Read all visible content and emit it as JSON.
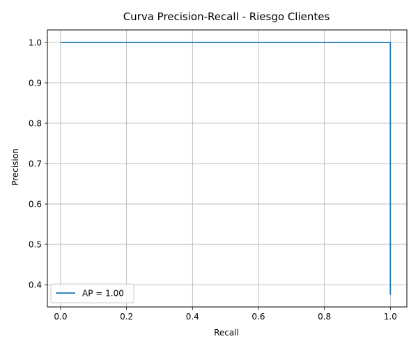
{
  "chart_data": {
    "type": "line",
    "title": "Curva Precision-Recall - Riesgo Clientes",
    "xlabel": "Recall",
    "ylabel": "Precision",
    "xlim": [
      -0.04,
      1.05
    ],
    "ylim": [
      0.345,
      1.031
    ],
    "xticks": [
      0.0,
      0.2,
      0.4,
      0.6,
      0.8,
      1.0
    ],
    "xtick_labels": [
      "0.0",
      "0.2",
      "0.4",
      "0.6",
      "0.8",
      "1.0"
    ],
    "yticks": [
      0.4,
      0.5,
      0.6,
      0.7,
      0.8,
      0.9,
      1.0
    ],
    "ytick_labels": [
      "0.4",
      "0.5",
      "0.6",
      "0.7",
      "0.8",
      "0.9",
      "1.0"
    ],
    "grid": true,
    "legend_position": "lower-left",
    "series": [
      {
        "name": "AP = 1.00",
        "color": "#1f77b4",
        "x": [
          0.0,
          1.0,
          1.0
        ],
        "y": [
          1.0,
          1.0,
          0.375
        ]
      }
    ]
  }
}
